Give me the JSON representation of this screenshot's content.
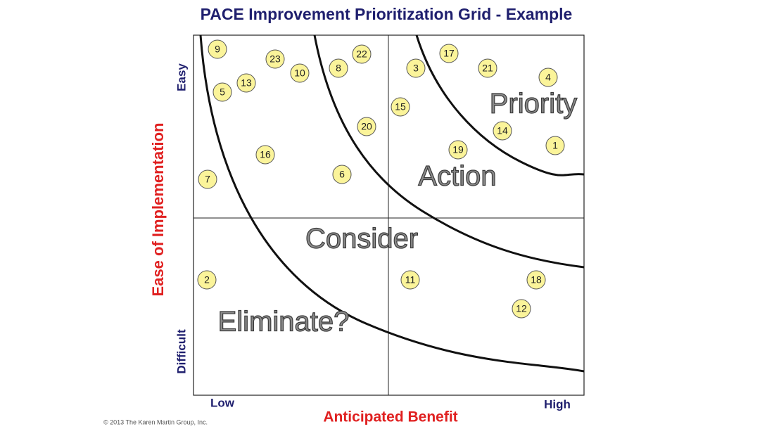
{
  "title": "PACE Improvement Prioritization Grid - Example",
  "y_axis": {
    "label": "Ease of Implementation",
    "high": "Easy",
    "low": "Difficult"
  },
  "x_axis": {
    "label": "Anticipated Benefit",
    "low": "Low",
    "high": "High"
  },
  "zones": [
    "Priority",
    "Action",
    "Consider",
    "Eliminate?"
  ],
  "items": [
    "9",
    "23",
    "10",
    "8",
    "22",
    "5",
    "13",
    "3",
    "17",
    "21",
    "4",
    "15",
    "20",
    "14",
    "1",
    "19",
    "16",
    "6",
    "7",
    "2",
    "11",
    "18",
    "12"
  ],
  "copyright": "© 2013 The Karen Martin Group, Inc."
}
